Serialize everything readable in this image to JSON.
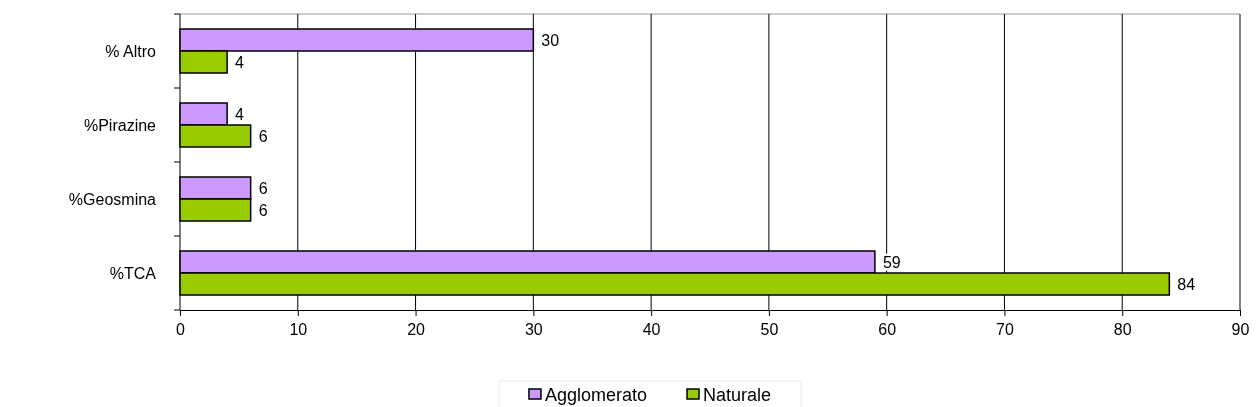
{
  "chart_data": {
    "type": "bar",
    "orientation": "horizontal",
    "categories": [
      "% Altro",
      "%Pirazine",
      "%Geosmina",
      "%TCA"
    ],
    "series": [
      {
        "name": "Agglomerato",
        "color": "#cc99ff",
        "values": [
          30,
          4,
          6,
          59
        ]
      },
      {
        "name": "Naturale",
        "color": "#99cc00",
        "values": [
          4,
          6,
          6,
          84
        ]
      }
    ],
    "xlim": [
      0,
      90
    ],
    "xticks": [
      0,
      10,
      20,
      30,
      40,
      50,
      60,
      70,
      80,
      90
    ],
    "grid": "x",
    "legend": "bottom",
    "data_labels": true
  }
}
